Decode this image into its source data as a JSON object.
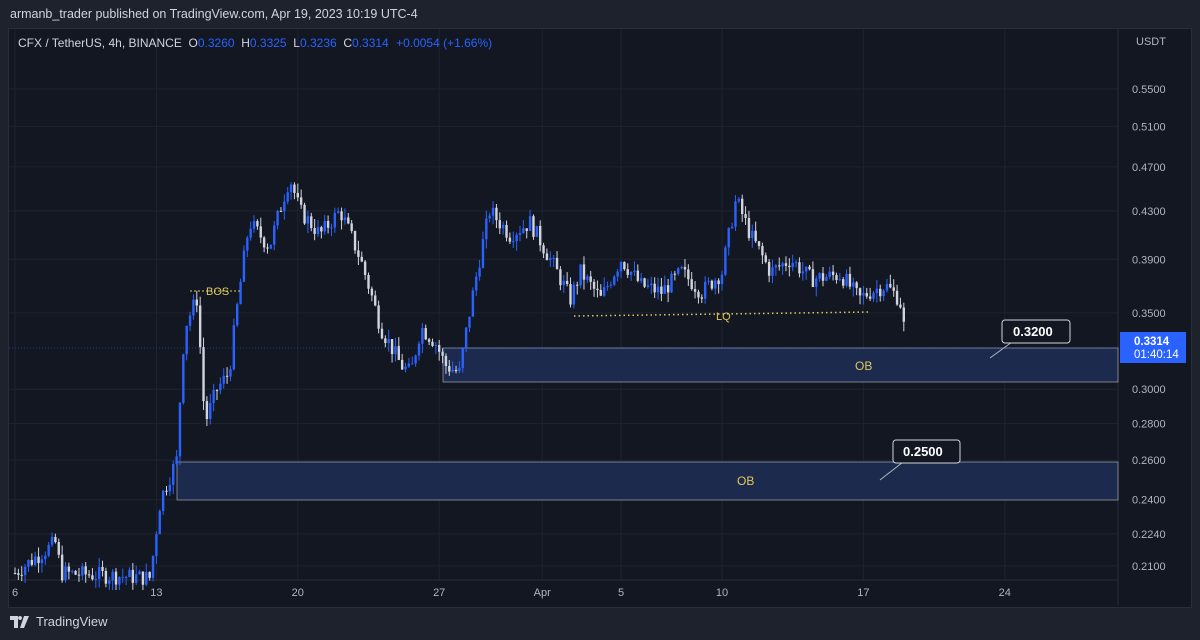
{
  "header": {
    "published": "armanb_trader published on TradingView.com, Apr 19, 2023 10:19 UTC-4"
  },
  "legend": {
    "symbol": "CFX / TetherUS, 4h, BINANCE",
    "o_label": "O",
    "o": "0.3260",
    "h_label": "H",
    "h": "0.3325",
    "l_label": "L",
    "l": "0.3236",
    "c_label": "C",
    "c": "0.3314",
    "change": "+0.0054 (+1.66%)"
  },
  "price_axis": {
    "currency": "USDT",
    "ticks": [
      "0.5500",
      "0.5100",
      "0.4700",
      "0.4300",
      "0.3900",
      "0.3500",
      "0.3000",
      "0.2800",
      "0.2600",
      "0.2400",
      "0.2240",
      "0.2100"
    ],
    "last_price": "0.3314",
    "countdown": "01:40:14"
  },
  "time_axis": {
    "ticks": [
      "6",
      "13",
      "20",
      "27",
      "Apr",
      "5",
      "10",
      "17",
      "24"
    ]
  },
  "annotations": {
    "bos": "BOS",
    "lq": "LQ",
    "ob1": "OB",
    "ob2": "OB",
    "callout1": "0.3200",
    "callout2": "0.2500"
  },
  "footer": {
    "brand": "TradingView"
  },
  "colors": {
    "up": "#2962ff",
    "down": "#d1d4dc",
    "ob_fill": "#1c2a4d",
    "accent": "#2962ff",
    "label": "#e0c85a"
  },
  "chart_data": {
    "type": "candlestick",
    "scale": "log",
    "x_unit": "days since Mar 6",
    "ylim": [
      0.205,
      0.56
    ],
    "path": [
      [
        0,
        0.207
      ],
      [
        2,
        0.22
      ],
      [
        2.3,
        0.207
      ],
      [
        6.7,
        0.205
      ],
      [
        7.2,
        0.24
      ],
      [
        8,
        0.26
      ],
      [
        8.4,
        0.34
      ],
      [
        9,
        0.36
      ],
      [
        9.4,
        0.28
      ],
      [
        10,
        0.3
      ],
      [
        10.6,
        0.31
      ],
      [
        11.6,
        0.42
      ],
      [
        12.6,
        0.4
      ],
      [
        13.6,
        0.46
      ],
      [
        14.1,
        0.43
      ],
      [
        15.1,
        0.41
      ],
      [
        16.1,
        0.43
      ],
      [
        17.1,
        0.39
      ],
      [
        18.1,
        0.34
      ],
      [
        19.1,
        0.315
      ],
      [
        19.6,
        0.31
      ],
      [
        20.1,
        0.34
      ],
      [
        20.8,
        0.33
      ],
      [
        21.3,
        0.315
      ],
      [
        22,
        0.31
      ],
      [
        22.5,
        0.35
      ],
      [
        23.5,
        0.43
      ],
      [
        24.5,
        0.41
      ],
      [
        25.5,
        0.42
      ],
      [
        26.5,
        0.39
      ],
      [
        27.5,
        0.36
      ],
      [
        28,
        0.38
      ],
      [
        29,
        0.36
      ],
      [
        30,
        0.39
      ],
      [
        31,
        0.37
      ],
      [
        32,
        0.365
      ],
      [
        33,
        0.38
      ],
      [
        34,
        0.365
      ],
      [
        35,
        0.38
      ],
      [
        35.7,
        0.44
      ],
      [
        36.4,
        0.41
      ],
      [
        37.4,
        0.38
      ],
      [
        38.4,
        0.39
      ],
      [
        39.4,
        0.375
      ],
      [
        40.9,
        0.378
      ],
      [
        41.8,
        0.36
      ],
      [
        42.3,
        0.365
      ],
      [
        43.1,
        0.37
      ],
      [
        43.8,
        0.36
      ],
      [
        44.1,
        0.3314
      ]
    ]
  }
}
